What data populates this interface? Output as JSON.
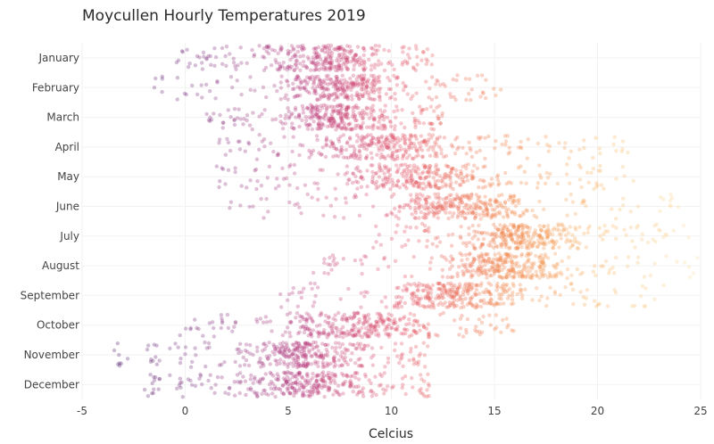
{
  "chart_data": {
    "type": "scatter",
    "title": "Moycullen Hourly Temperatures 2019",
    "xlabel": "Celcius",
    "ylabel": "",
    "xlim": [
      -5,
      25
    ],
    "xticks": [
      -5,
      0,
      5,
      10,
      15,
      20,
      25
    ],
    "grid": true,
    "jittered_strip": true,
    "marker_opacity": 0.3,
    "colorscale": [
      "#4b1d6b",
      "#7a2a7c",
      "#b5367a",
      "#e0485f",
      "#f07a3c",
      "#f8b35c",
      "#fce2a8"
    ],
    "categories": [
      "January",
      "February",
      "March",
      "April",
      "May",
      "June",
      "July",
      "August",
      "September",
      "October",
      "November",
      "December"
    ],
    "month_ranges": [
      {
        "month": "January",
        "min": -0.5,
        "max": 12.0,
        "typical_low": 3.0,
        "typical_high": 10.5
      },
      {
        "month": "February",
        "min": -1.5,
        "max": 15.5,
        "typical_low": 4.0,
        "typical_high": 11.5
      },
      {
        "month": "March",
        "min": 1.0,
        "max": 12.5,
        "typical_low": 4.0,
        "typical_high": 11.0
      },
      {
        "month": "April",
        "min": 1.5,
        "max": 21.5,
        "typical_low": 5.0,
        "typical_high": 15.0
      },
      {
        "month": "May",
        "min": 1.5,
        "max": 22.0,
        "typical_low": 7.0,
        "typical_high": 16.0
      },
      {
        "month": "June",
        "min": 2.0,
        "max": 24.0,
        "typical_low": 9.5,
        "typical_high": 17.0
      },
      {
        "month": "July",
        "min": 9.0,
        "max": 24.5,
        "typical_low": 12.5,
        "typical_high": 20.0
      },
      {
        "month": "August",
        "min": 6.0,
        "max": 25.0,
        "typical_low": 12.0,
        "typical_high": 19.0
      },
      {
        "month": "September",
        "min": 4.5,
        "max": 23.5,
        "typical_low": 9.0,
        "typical_high": 17.0
      },
      {
        "month": "October",
        "min": -0.5,
        "max": 16.0,
        "typical_low": 4.0,
        "typical_high": 13.0
      },
      {
        "month": "November",
        "min": -3.5,
        "max": 12.0,
        "typical_low": 2.0,
        "typical_high": 9.5
      },
      {
        "month": "December",
        "min": -2.0,
        "max": 12.0,
        "typical_low": 1.5,
        "typical_high": 10.5
      }
    ]
  }
}
